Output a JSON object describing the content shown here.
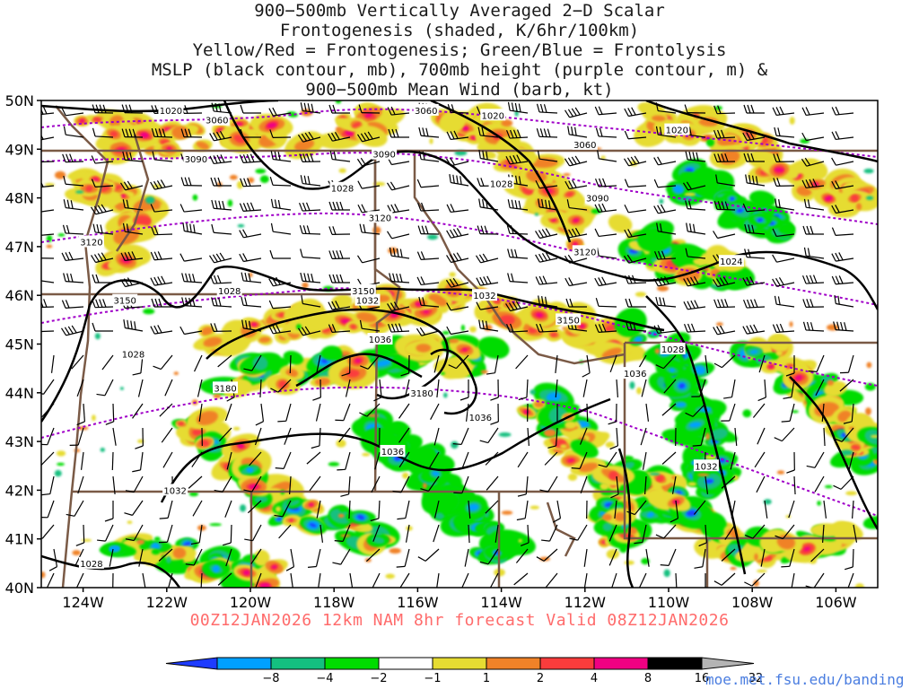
{
  "title": {
    "lines": [
      "900−500mb Vertically Averaged 2−D Scalar",
      "Frontogenesis (shaded, K/6hr/100km)",
      "Yellow/Red = Frontogenesis;  Green/Blue = Frontolysis",
      "MSLP (black contour, mb), 700mb height (purple contour, m) &",
      "900−500mb Mean Wind (barb, kt)"
    ]
  },
  "map": {
    "lat_labels": [
      "50N",
      "49N",
      "48N",
      "47N",
      "46N",
      "45N",
      "44N",
      "43N",
      "42N",
      "41N",
      "40N"
    ],
    "lon_labels": [
      "124W",
      "122W",
      "120W",
      "118W",
      "116W",
      "114W",
      "112W",
      "110W",
      "108W",
      "106W"
    ],
    "lat_range": [
      40,
      50
    ],
    "lon_range": [
      -125,
      -105
    ],
    "mslp_labels": [
      {
        "text": "1020",
        "lon": -121.9,
        "lat": 49.8
      },
      {
        "text": "1020",
        "lon": -114.2,
        "lat": 49.7
      },
      {
        "text": "1020",
        "lon": -109.8,
        "lat": 49.4
      },
      {
        "text": "1028",
        "lon": -117.8,
        "lat": 48.2
      },
      {
        "text": "1028",
        "lon": -114.0,
        "lat": 48.3
      },
      {
        "text": "1024",
        "lon": -108.5,
        "lat": 46.7
      },
      {
        "text": "1028",
        "lon": -120.5,
        "lat": 46.1
      },
      {
        "text": "1032",
        "lon": -117.2,
        "lat": 45.9
      },
      {
        "text": "1032",
        "lon": -114.4,
        "lat": 46.0
      },
      {
        "text": "1036",
        "lon": -116.9,
        "lat": 45.1
      },
      {
        "text": "1028",
        "lon": -122.8,
        "lat": 44.8
      },
      {
        "text": "1028",
        "lon": -109.9,
        "lat": 44.9
      },
      {
        "text": "1036",
        "lon": -110.8,
        "lat": 44.4
      },
      {
        "text": "1036",
        "lon": -114.5,
        "lat": 43.5
      },
      {
        "text": "1036",
        "lon": -116.6,
        "lat": 42.8
      },
      {
        "text": "1032",
        "lon": -109.1,
        "lat": 42.5
      },
      {
        "text": "1032",
        "lon": -121.8,
        "lat": 42.0
      },
      {
        "text": "1028",
        "lon": -123.8,
        "lat": 40.5
      }
    ],
    "height_labels": [
      {
        "text": "3060",
        "lon": -120.8,
        "lat": 49.6
      },
      {
        "text": "3060",
        "lon": -115.8,
        "lat": 49.8
      },
      {
        "text": "3060",
        "lon": -112.0,
        "lat": 49.1
      },
      {
        "text": "3090",
        "lon": -121.3,
        "lat": 48.8
      },
      {
        "text": "3090",
        "lon": -116.8,
        "lat": 48.9
      },
      {
        "text": "3090",
        "lon": -111.7,
        "lat": 48.0
      },
      {
        "text": "3120",
        "lon": -123.8,
        "lat": 47.1
      },
      {
        "text": "3120",
        "lon": -116.9,
        "lat": 47.6
      },
      {
        "text": "3120",
        "lon": -112.0,
        "lat": 46.9
      },
      {
        "text": "3150",
        "lon": -123.0,
        "lat": 45.9
      },
      {
        "text": "3150",
        "lon": -117.3,
        "lat": 46.1
      },
      {
        "text": "3150",
        "lon": -112.4,
        "lat": 45.5
      },
      {
        "text": "3180",
        "lon": -120.6,
        "lat": 44.1
      },
      {
        "text": "3180",
        "lon": -115.9,
        "lat": 44.0
      }
    ]
  },
  "valid_time": "00Z12JAN2026 12km NAM 8hr forecast Valid 08Z12JAN2026",
  "colorbar": {
    "labels": [
      "−8",
      "−4",
      "−2",
      "−1",
      "1",
      "2",
      "4",
      "8",
      "16",
      "32"
    ],
    "colors": [
      "#1e3cff",
      "#00a0ff",
      "#14c080",
      "#00dc00",
      "#ffffff",
      "#e6dc32",
      "#f08228",
      "#fa3c3c",
      "#f00082",
      "#000000",
      "#b4b4b4"
    ]
  },
  "colors": {
    "mslp": "#000000",
    "height": "#a000c8",
    "borders": "#7a5a46",
    "frontogenesis": [
      "#e6dc32",
      "#f08228",
      "#fa3c3c",
      "#f00082",
      "#000000"
    ],
    "frontolysis": [
      "#00dc00",
      "#14c080",
      "#00a0ff",
      "#1e3cff"
    ]
  },
  "credit": "moe.met.fsu.edu/banding"
}
